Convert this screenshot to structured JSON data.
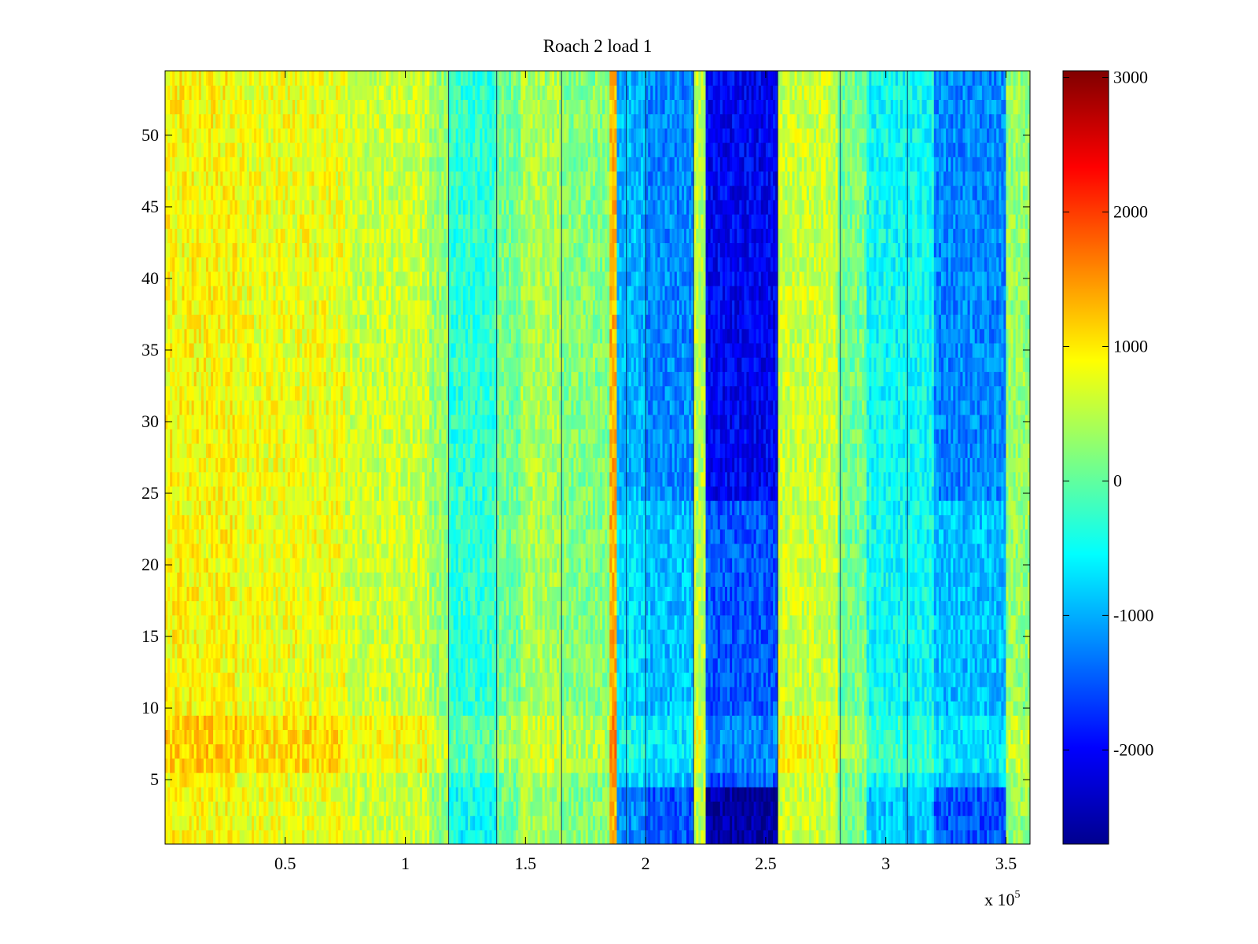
{
  "chart_data": {
    "type": "heatmap",
    "title": "Roach 2 load 1",
    "x_range": [
      0,
      360000
    ],
    "y_range": [
      0.5,
      54.5
    ],
    "x_ticks": [
      50000,
      100000,
      150000,
      200000,
      250000,
      300000,
      350000
    ],
    "x_tick_labels": [
      "0.5",
      "1",
      "1.5",
      "2",
      "2.5",
      "3",
      "3.5"
    ],
    "x_exponent_label": "x 10",
    "x_exponent_power": "5",
    "y_ticks": [
      5,
      10,
      15,
      20,
      25,
      30,
      35,
      40,
      45,
      50
    ],
    "y_tick_labels": [
      "5",
      "10",
      "15",
      "20",
      "25",
      "30",
      "35",
      "40",
      "45",
      "50"
    ],
    "colorbar": {
      "colormap": "jet",
      "range": [
        -2700,
        3050
      ],
      "ticks": [
        3000,
        2000,
        1000,
        0,
        -1000,
        -2000
      ],
      "tick_labels": [
        "3000",
        "2000",
        "1000",
        "0",
        "-1000",
        "-2000"
      ],
      "position": "right"
    },
    "rows": 54,
    "column_profile": [
      {
        "x_start": 0,
        "x_end": 30000,
        "value": 900
      },
      {
        "x_start": 30000,
        "x_end": 75000,
        "value": 800
      },
      {
        "x_start": 75000,
        "x_end": 110000,
        "value": 600
      },
      {
        "x_start": 110000,
        "x_end": 118000,
        "value": 300
      },
      {
        "x_start": 118000,
        "x_end": 138000,
        "value": -300
      },
      {
        "x_start": 138000,
        "x_end": 148000,
        "value": 100
      },
      {
        "x_start": 148000,
        "x_end": 165000,
        "value": 400
      },
      {
        "x_start": 165000,
        "x_end": 185000,
        "value": 200
      },
      {
        "x_start": 185000,
        "x_end": 188000,
        "value": 1300
      },
      {
        "x_start": 188000,
        "x_end": 200000,
        "value": -700
      },
      {
        "x_start": 200000,
        "x_end": 220000,
        "value": -900
      },
      {
        "x_start": 220000,
        "x_end": 225000,
        "value": 500
      },
      {
        "x_start": 225000,
        "x_end": 255000,
        "value": -1500
      },
      {
        "x_start": 255000,
        "x_end": 280000,
        "value": 600
      },
      {
        "x_start": 280000,
        "x_end": 292000,
        "value": 100
      },
      {
        "x_start": 292000,
        "x_end": 320000,
        "value": -500
      },
      {
        "x_start": 320000,
        "x_end": 350000,
        "value": -900
      },
      {
        "x_start": 350000,
        "x_end": 360000,
        "value": 300
      }
    ],
    "dark_vertical_lines_x": [
      118000,
      138000,
      165000,
      192000,
      200000,
      220000,
      255000,
      281000,
      309000
    ],
    "row_bands": [
      {
        "y_start": 0.5,
        "y_end": 4.5,
        "effect": "deepen"
      },
      {
        "y_start": 5.5,
        "y_end": 9.5,
        "effect": "warm"
      },
      {
        "y_start": 24.5,
        "y_end": 54.5,
        "effect": "deepen-mid"
      }
    ]
  }
}
